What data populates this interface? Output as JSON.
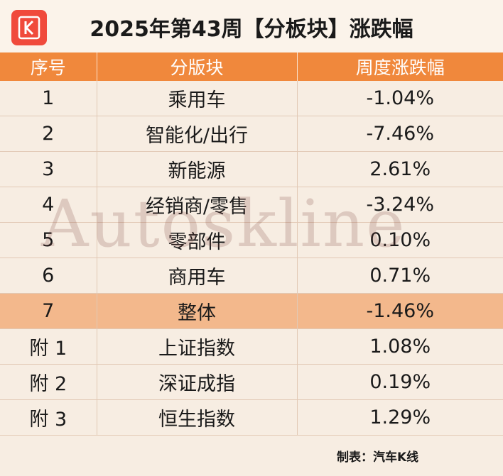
{
  "title": "2025年第43周【分板块】涨跌幅",
  "logo_letter": "K",
  "columns": [
    "序号",
    "分版块",
    "周度涨跌幅"
  ],
  "rows": [
    {
      "no": "1",
      "sector": "乘用车",
      "change": "-1.04%"
    },
    {
      "no": "2",
      "sector": "智能化/出行",
      "change": "-7.46%"
    },
    {
      "no": "3",
      "sector": "新能源",
      "change": "2.61%"
    },
    {
      "no": "4",
      "sector": "经销商/零售",
      "change": "-3.24%"
    },
    {
      "no": "5",
      "sector": "零部件",
      "change": "0.10%"
    },
    {
      "no": "6",
      "sector": "商用车",
      "change": "0.71%"
    },
    {
      "no": "7",
      "sector": "整体",
      "change": "-1.46%",
      "highlight": true
    },
    {
      "no": "附 1",
      "sector": "上证指数",
      "change": "1.08%"
    },
    {
      "no": "附 2",
      "sector": "深证成指",
      "change": "0.19%"
    },
    {
      "no": "附 3",
      "sector": "恒生指数",
      "change": "1.29%"
    }
  ],
  "watermark": "Autoskline",
  "source": "制表：汽车K线",
  "colors": {
    "header_bg": "#f0883c",
    "highlight_row": "#f3b88c",
    "background": "#f7ede2",
    "logo": "#f04a3c"
  }
}
